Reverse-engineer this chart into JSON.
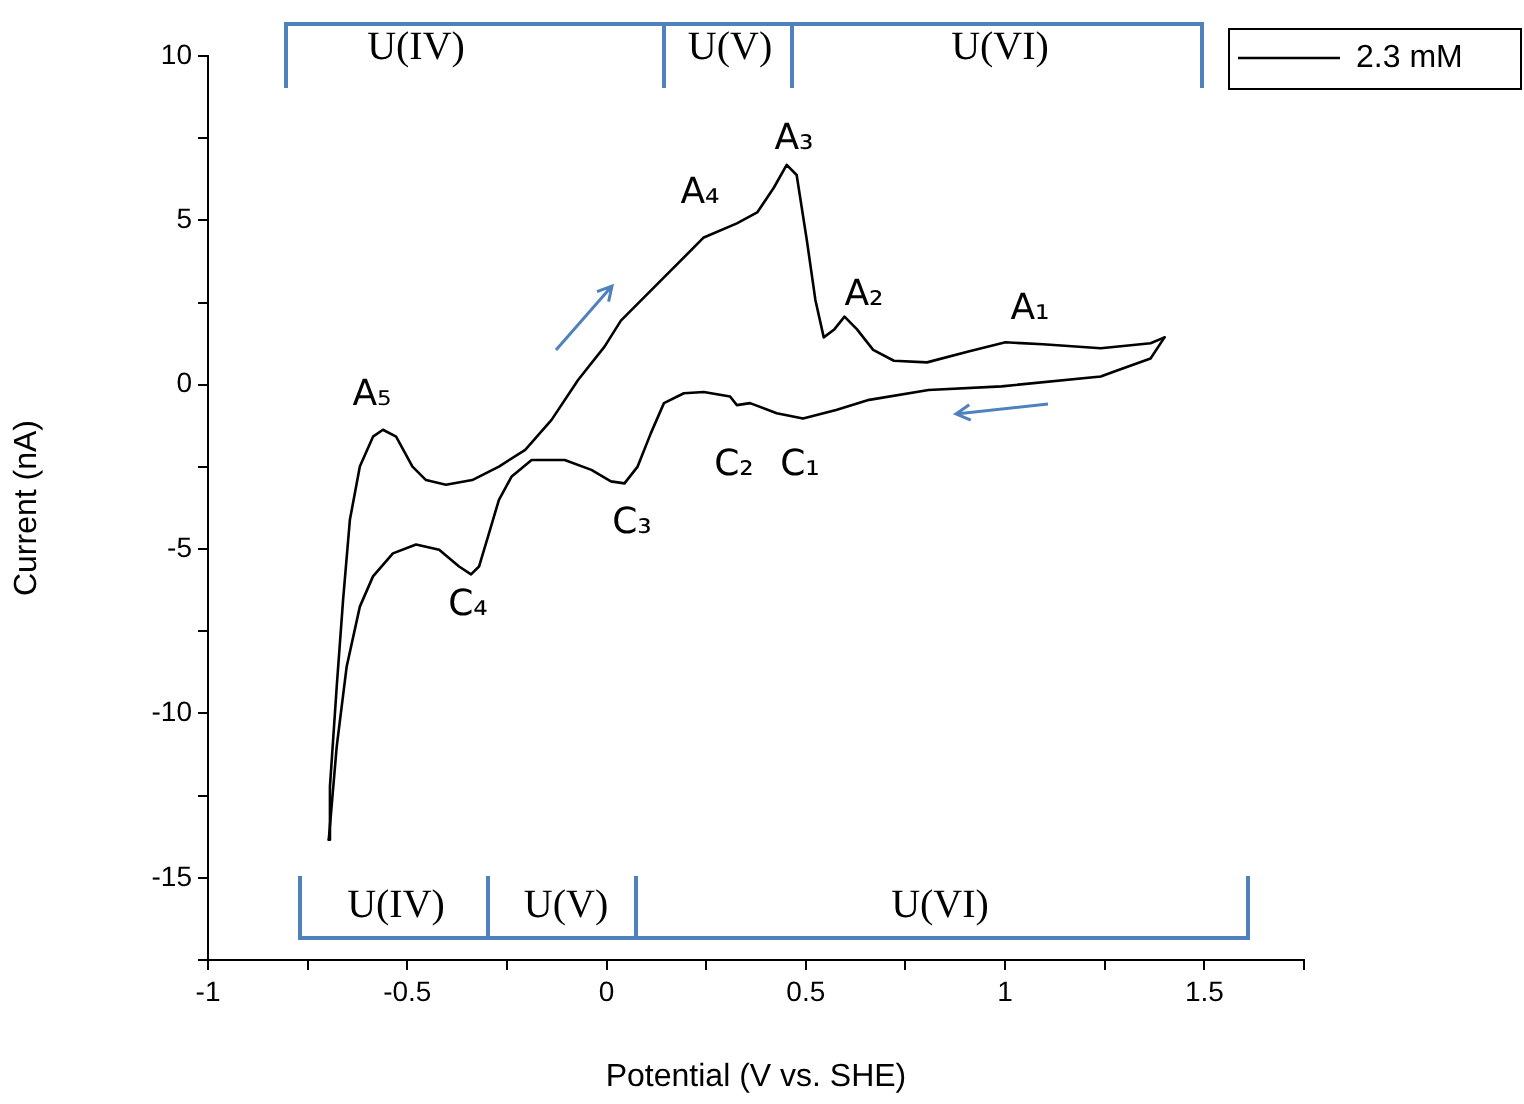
{
  "chart_data": {
    "type": "line",
    "xlabel": "Potential (V vs. SHE)",
    "ylabel": "Current (nA)",
    "xlim": [
      -1.0,
      1.75
    ],
    "xticks": [
      -1.0,
      {
        "value": -0.75,
        "label": null
      },
      -0.5,
      {
        "value": -0.25,
        "label": null
      },
      0.0,
      {
        "value": 0.25,
        "label": null
      },
      0.5,
      {
        "value": 0.75,
        "label": null
      },
      1.0,
      {
        "value": 1.25,
        "label": null
      },
      1.5,
      {
        "value": 1.75,
        "label": null
      }
    ],
    "ylim": [
      -17.5,
      10
    ],
    "yticks": [
      {
        "value": -17.5,
        "label": null
      },
      -15,
      {
        "value": -12.5,
        "label": null
      },
      -10,
      {
        "value": -7.5,
        "label": null
      },
      -5,
      {
        "value": -2.5,
        "label": null
      },
      0,
      {
        "value": 2.5,
        "label": null
      },
      5,
      {
        "value": 7.5,
        "label": null
      },
      10
    ],
    "grid": false,
    "legend": "top right",
    "marker": "none",
    "line_style": "solid",
    "series": [
      {
        "name": "2.3 mM",
        "color": "#000000",
        "x": [
          -0.697,
          -0.694,
          -0.677,
          -0.661,
          -0.644,
          -0.619,
          -0.586,
          -0.561,
          -0.528,
          -0.487,
          -0.453,
          -0.403,
          -0.337,
          -0.27,
          -0.204,
          -0.138,
          -0.071,
          -0.005,
          0.036,
          0.161,
          0.244,
          0.327,
          0.378,
          0.42,
          0.452,
          0.477,
          0.503,
          0.524,
          0.545,
          0.572,
          0.597,
          0.628,
          0.669,
          0.721,
          0.804,
          0.908,
          1.001,
          1.095,
          1.24,
          1.365,
          1.4
        ],
        "values": [
          -13.84,
          -12.22,
          -9.18,
          -6.54,
          -4.11,
          -2.49,
          -1.58,
          -1.37,
          -1.58,
          -2.49,
          -2.9,
          -3.04,
          -2.9,
          -2.49,
          -1.98,
          -1.07,
          0.15,
          1.16,
          1.95,
          3.47,
          4.48,
          4.91,
          5.24,
          6.0,
          6.69,
          6.38,
          4.36,
          2.58,
          1.44,
          1.69,
          2.07,
          1.69,
          1.06,
          0.73,
          0.68,
          1.01,
          1.29,
          1.23,
          1.11,
          1.26,
          1.44
        ]
      },
      {
        "color": "#000000",
        "x": [
          -0.697,
          -0.677,
          -0.652,
          -0.619,
          -0.586,
          -0.536,
          -0.478,
          -0.42,
          -0.37,
          -0.34,
          -0.32,
          -0.295,
          -0.27,
          -0.238,
          -0.188,
          -0.105,
          -0.038,
          0.011,
          0.045,
          0.078,
          0.111,
          0.144,
          0.194,
          0.244,
          0.31,
          0.327,
          0.36,
          0.427,
          0.493,
          0.576,
          0.659,
          0.808,
          0.991,
          1.24,
          1.281,
          1.365,
          1.4
        ],
        "values": [
          -13.84,
          -11.0,
          -8.57,
          -6.75,
          -5.83,
          -5.13,
          -4.86,
          -5.02,
          -5.53,
          -5.77,
          -5.53,
          -4.52,
          -3.5,
          -2.79,
          -2.29,
          -2.29,
          -2.59,
          -2.94,
          -3.0,
          -2.49,
          -1.48,
          -0.56,
          -0.26,
          -0.22,
          -0.36,
          -0.62,
          -0.56,
          -0.87,
          -1.03,
          -0.77,
          -0.46,
          -0.16,
          -0.05,
          0.25,
          0.43,
          0.8,
          1.44
        ]
      }
    ],
    "annotations": [
      "U(IV)",
      "U(V)",
      "U(VI)",
      "U(IV)",
      "U(V)",
      "U(VI)",
      "A₅",
      "A₄",
      "A₃",
      "A₂",
      "A₁",
      "C₄",
      "C₃",
      "C₂",
      "C₁"
    ]
  }
}
